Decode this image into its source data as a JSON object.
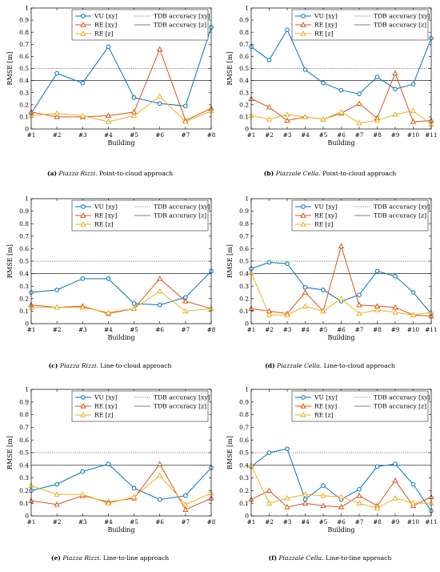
{
  "chart_data": [
    {
      "type": "line",
      "caption": {
        "label": "(a)",
        "site": "Piazza Rizzi.",
        "method": "Point-to-cloud approach"
      },
      "xlabel": "Building",
      "ylabel": "RMSE [m]",
      "ylim": [
        0,
        1
      ],
      "yticks": [
        "0",
        "0.1",
        "0.2",
        "0.3",
        "0.4",
        "0.5",
        "0.6",
        "0.7",
        "0.8",
        "0.9",
        "1"
      ],
      "categories": [
        "#1",
        "#2",
        "#3",
        "#4",
        "#5",
        "#6",
        "#7",
        "#8"
      ],
      "legend": {
        "placement": "top",
        "entries": [
          "VU [xy]",
          "TDB accuracy [xy]",
          "RE [xy]",
          "TDB accuracy [z]",
          "RE [z]"
        ]
      },
      "reference_lines": [
        {
          "name": "TDB accuracy [xy]",
          "value": 0.5,
          "style": "dotted"
        },
        {
          "name": "TDB accuracy [z]",
          "value": 0.4,
          "style": "solid"
        }
      ],
      "series": [
        {
          "name": "VU [xy]",
          "values": [
            0.13,
            0.46,
            0.38,
            0.68,
            0.26,
            0.21,
            0.19,
            0.84
          ]
        },
        {
          "name": "RE [xy]",
          "values": [
            0.14,
            0.1,
            0.1,
            0.11,
            0.14,
            0.66,
            0.07,
            0.17
          ]
        },
        {
          "name": "RE [z]",
          "values": [
            0.11,
            0.13,
            0.11,
            0.06,
            0.11,
            0.27,
            0.06,
            0.15
          ]
        }
      ]
    },
    {
      "type": "line",
      "caption": {
        "label": "(b)",
        "site": "Piazzale Cella.",
        "method": "Point-to-cloud approach"
      },
      "xlabel": "Building",
      "ylabel": "RMSE [m]",
      "ylim": [
        0,
        1
      ],
      "yticks": [
        "0",
        "0.1",
        "0.2",
        "0.3",
        "0.4",
        "0.5",
        "0.6",
        "0.7",
        "0.8",
        "0.9",
        "1"
      ],
      "categories": [
        "#1",
        "#2",
        "#3",
        "#4",
        "#5",
        "#6",
        "#7",
        "#8",
        "#9",
        "#10",
        "#11"
      ],
      "legend": {
        "placement": "top",
        "entries": [
          "VU [xy]",
          "TDB accuracy [xy]",
          "RE [xy]",
          "TDB accuracy [z]",
          "RE [z]"
        ]
      },
      "reference_lines": [
        {
          "name": "TDB accuracy [xy]",
          "value": 0.5,
          "style": "dotted"
        },
        {
          "name": "TDB accuracy [z]",
          "value": 0.4,
          "style": "solid"
        }
      ],
      "series": [
        {
          "name": "VU [xy]",
          "values": [
            0.68,
            0.57,
            0.82,
            0.49,
            0.38,
            0.32,
            0.29,
            0.43,
            0.33,
            0.37,
            0.75
          ]
        },
        {
          "name": "RE [xy]",
          "values": [
            0.25,
            0.18,
            0.07,
            0.1,
            0.08,
            0.13,
            0.21,
            0.09,
            0.46,
            0.06,
            0.07
          ]
        },
        {
          "name": "RE [z]",
          "values": [
            0.11,
            0.08,
            0.12,
            0.1,
            0.08,
            0.14,
            0.05,
            0.07,
            0.12,
            0.15,
            0.04
          ]
        }
      ]
    },
    {
      "type": "line",
      "caption": {
        "label": "(c)",
        "site": "Piazza Rizzi.",
        "method": "Line-to-cloud approach"
      },
      "xlabel": "Building",
      "ylabel": "RMSE [m]",
      "ylim": [
        0,
        1
      ],
      "yticks": [
        "0",
        "0.1",
        "0.2",
        "0.3",
        "0.4",
        "0.5",
        "0.6",
        "0.7",
        "0.8",
        "0.9",
        "1"
      ],
      "categories": [
        "#1",
        "#2",
        "#3",
        "#4",
        "#5",
        "#6",
        "#7",
        "#8"
      ],
      "legend": {
        "placement": "top",
        "entries": [
          "VU [xy]",
          "TDB accuracy [xy]",
          "RE [xy]",
          "TDB accuracy [z]",
          "RE [z]"
        ]
      },
      "reference_lines": [
        {
          "name": "TDB accuracy [xy]",
          "value": 0.5,
          "style": "dotted"
        },
        {
          "name": "TDB accuracy [z]",
          "value": 0.4,
          "style": "solid"
        }
      ],
      "series": [
        {
          "name": "VU [xy]",
          "values": [
            0.25,
            0.27,
            0.36,
            0.36,
            0.16,
            0.15,
            0.21,
            0.42
          ]
        },
        {
          "name": "RE [xy]",
          "values": [
            0.15,
            0.13,
            0.14,
            0.08,
            0.12,
            0.36,
            0.18,
            0.12
          ]
        },
        {
          "name": "RE [z]",
          "values": [
            0.13,
            0.13,
            0.13,
            0.09,
            0.12,
            0.26,
            0.1,
            0.12
          ]
        }
      ]
    },
    {
      "type": "line",
      "caption": {
        "label": "(d)",
        "site": "Piazzale Cella.",
        "method": "Line-to-cloud approach"
      },
      "xlabel": "Building",
      "ylabel": "RMSE [m]",
      "ylim": [
        0,
        1
      ],
      "yticks": [
        "0",
        "0.1",
        "0.2",
        "0.3",
        "0.4",
        "0.5",
        "0.6",
        "0.7",
        "0.8",
        "0.9",
        "1"
      ],
      "categories": [
        "#1",
        "#2",
        "#3",
        "#4",
        "#5",
        "#6",
        "#7",
        "#8",
        "#9",
        "#10",
        "#11"
      ],
      "legend": {
        "placement": "top",
        "entries": [
          "VU [xy]",
          "TDB accuracy [xy]",
          "RE [xy]",
          "TDB accuracy [z]",
          "RE [z]"
        ]
      },
      "reference_lines": [
        {
          "name": "TDB accuracy [xy]",
          "value": 0.5,
          "style": "dotted"
        },
        {
          "name": "TDB accuracy [z]",
          "value": 0.4,
          "style": "solid"
        }
      ],
      "series": [
        {
          "name": "VU [xy]",
          "values": [
            0.44,
            0.49,
            0.48,
            0.29,
            0.27,
            0.18,
            0.23,
            0.42,
            0.38,
            0.25,
            0.08
          ]
        },
        {
          "name": "RE [xy]",
          "values": [
            0.12,
            0.1,
            0.08,
            0.25,
            0.1,
            0.62,
            0.15,
            0.14,
            0.13,
            0.07,
            0.06
          ]
        },
        {
          "name": "RE [z]",
          "values": [
            0.41,
            0.07,
            0.07,
            0.14,
            0.1,
            0.2,
            0.08,
            0.11,
            0.09,
            0.07,
            0.09
          ]
        }
      ]
    },
    {
      "type": "line",
      "caption": {
        "label": "(e)",
        "site": "Piazza Rizzi.",
        "method": "Line-to-line approach"
      },
      "xlabel": "Building",
      "ylabel": "RMSE [m]",
      "ylim": [
        0,
        1
      ],
      "yticks": [
        "0",
        "0.1",
        "0.2",
        "0.3",
        "0.4",
        "0.5",
        "0.6",
        "0.7",
        "0.8",
        "0.9",
        "1"
      ],
      "categories": [
        "#1",
        "#2",
        "#3",
        "#4",
        "#5",
        "#6",
        "#7",
        "#8"
      ],
      "legend": {
        "placement": "top",
        "entries": [
          "VU [xy]",
          "TDB accuracy [xy]",
          "RE [xy]",
          "TDB accuracy [z]",
          "RE [z]"
        ]
      },
      "reference_lines": [
        {
          "name": "TDB accuracy [xy]",
          "value": 0.5,
          "style": "dotted"
        },
        {
          "name": "TDB accuracy [z]",
          "value": 0.4,
          "style": "solid"
        }
      ],
      "series": [
        {
          "name": "VU [xy]",
          "values": [
            0.2,
            0.25,
            0.35,
            0.41,
            0.22,
            0.13,
            0.16,
            0.38
          ]
        },
        {
          "name": "RE [xy]",
          "values": [
            0.12,
            0.09,
            0.16,
            0.11,
            0.14,
            0.41,
            0.05,
            0.14
          ]
        },
        {
          "name": "RE [z]",
          "values": [
            0.24,
            0.17,
            0.17,
            0.1,
            0.15,
            0.32,
            0.09,
            0.18
          ]
        }
      ]
    },
    {
      "type": "line",
      "caption": {
        "label": "(f)",
        "site": "Piazzale Cella.",
        "method": "Line-to-line approach"
      },
      "xlabel": "Building",
      "ylabel": "RMSE [m]",
      "ylim": [
        0,
        1
      ],
      "yticks": [
        "0",
        "0.1",
        "0.2",
        "0.3",
        "0.4",
        "0.5",
        "0.6",
        "0.7",
        "0.8",
        "0.9",
        "1"
      ],
      "categories": [
        "#1",
        "#2",
        "#3",
        "#4",
        "#5",
        "#6",
        "#7",
        "#8",
        "#9",
        "#10",
        "#11"
      ],
      "legend": {
        "placement": "top",
        "entries": [
          "VU [xy]",
          "TDB accuracy [xy]",
          "RE [xy]",
          "TDB accuracy [z]",
          "RE [z]"
        ]
      },
      "reference_lines": [
        {
          "name": "TDB accuracy [xy]",
          "value": 0.5,
          "style": "dotted"
        },
        {
          "name": "TDB accuracy [z]",
          "value": 0.4,
          "style": "solid"
        }
      ],
      "series": [
        {
          "name": "VU [xy]",
          "values": [
            0.39,
            0.5,
            0.53,
            0.13,
            0.24,
            0.13,
            0.21,
            0.39,
            0.41,
            0.25,
            0.04
          ]
        },
        {
          "name": "RE [xy]",
          "values": [
            0.13,
            0.2,
            0.07,
            0.1,
            0.08,
            0.07,
            0.16,
            0.08,
            0.28,
            0.08,
            0.15
          ]
        },
        {
          "name": "RE [z]",
          "values": [
            0.4,
            0.1,
            0.14,
            0.17,
            0.16,
            0.15,
            0.1,
            0.06,
            0.14,
            0.1,
            0.1
          ]
        }
      ]
    }
  ],
  "colors": {
    "vu": "#0072BD",
    "re_xy": "#D95319",
    "re_z": "#EDB120",
    "reference": "#000000",
    "axis": "#000000",
    "grid": "#e6e6e6"
  }
}
